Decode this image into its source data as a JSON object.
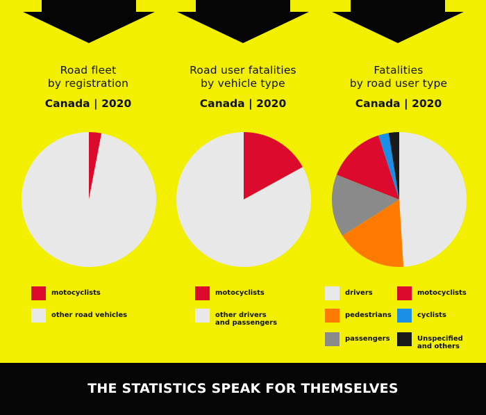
{
  "colors": {
    "background": "#f2ef00",
    "footer": "#050505",
    "red": "#dc0a2d",
    "light_gray": "#e8e8e8",
    "orange": "#ff7a00",
    "gray": "#8a8a8a",
    "blue": "#1b8fe6",
    "black": "#1a1a1a"
  },
  "footer": {
    "text": "THE STATISTICS SPEAK FOR THEMSELVES"
  },
  "chart_data": [
    {
      "type": "pie",
      "title": "Road fleet\nby registration",
      "subtitle": "Canada | 2020",
      "slices": [
        {
          "label": "motocyclists",
          "value": 3,
          "color": "#dc0a2d"
        },
        {
          "label": "other road vehicles",
          "value": 97,
          "color": "#e8e8e8"
        }
      ]
    },
    {
      "type": "pie",
      "title": "Road user fatalities\nby vehicle type",
      "subtitle": "Canada | 2020",
      "slices": [
        {
          "label": "motocyclists",
          "value": 17,
          "color": "#dc0a2d"
        },
        {
          "label": "other drivers\nand passengers",
          "value": 83,
          "color": "#e8e8e8"
        }
      ]
    },
    {
      "type": "pie",
      "title": "Fatalities\nby road user type",
      "subtitle": "Canada | 2020",
      "slices": [
        {
          "label": "drivers",
          "value": 49,
          "color": "#e8e8e8"
        },
        {
          "label": "pedestrians",
          "value": 17,
          "color": "#ff7a00"
        },
        {
          "label": "passengers",
          "value": 15,
          "color": "#8a8a8a"
        },
        {
          "label": "motocyclists",
          "value": 14,
          "color": "#dc0a2d"
        },
        {
          "label": "cyclists",
          "value": 2.5,
          "color": "#1b8fe6"
        },
        {
          "label": "Unspecified\nand others",
          "value": 2.5,
          "color": "#1a1a1a"
        }
      ]
    }
  ]
}
